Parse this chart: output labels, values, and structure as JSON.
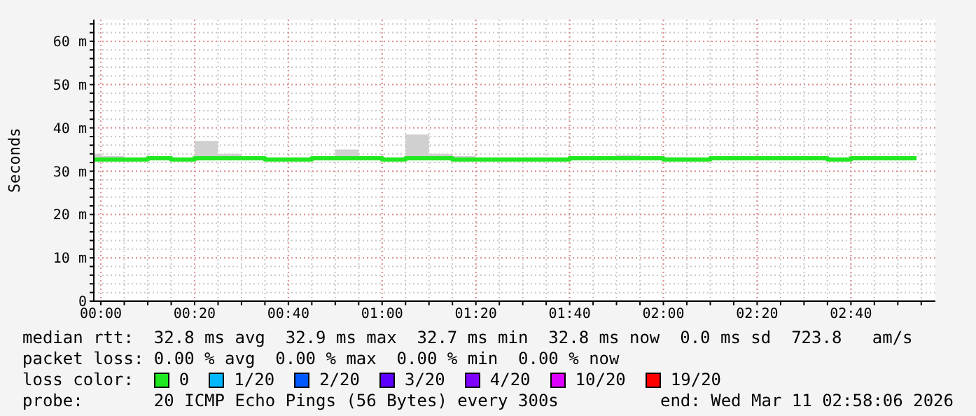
{
  "chart_data": {
    "type": "step",
    "ylabel": "Seconds",
    "legend_title": "loss color:",
    "legend": "bottom",
    "grid": true,
    "x": [
      -0.025,
      0,
      0.0833,
      0.1667,
      0.25,
      0.3333,
      0.4167,
      0.5,
      0.5833,
      0.6667,
      0.75,
      0.8333,
      0.9167,
      1,
      1.0833,
      1.1667,
      1.25,
      1.3333,
      1.4167,
      1.5,
      1.5833,
      1.6667,
      1.75,
      1.8333,
      1.9167,
      2,
      2.0833,
      2.1667,
      2.25,
      2.3333,
      2.4167,
      2.5,
      2.5833,
      2.6667,
      2.75,
      2.8333,
      2.9
    ],
    "xlim": [
      -0.025,
      2.967
    ],
    "xticks": [
      {
        "value": 0,
        "label": "00:00"
      },
      {
        "value": 0.0833,
        "label": null
      },
      {
        "value": 0.1667,
        "label": null
      },
      {
        "value": 0.25,
        "label": null
      },
      {
        "value": 0.3333,
        "label": "00:20"
      },
      {
        "value": 0.4167,
        "label": null
      },
      {
        "value": 0.5,
        "label": null
      },
      {
        "value": 0.5833,
        "label": null
      },
      {
        "value": 0.6667,
        "label": "00:40"
      },
      {
        "value": 0.75,
        "label": null
      },
      {
        "value": 0.8333,
        "label": null
      },
      {
        "value": 0.9167,
        "label": null
      },
      {
        "value": 1,
        "label": "01:00"
      },
      {
        "value": 1.0833,
        "label": null
      },
      {
        "value": 1.1667,
        "label": null
      },
      {
        "value": 1.25,
        "label": null
      },
      {
        "value": 1.3333,
        "label": "01:20"
      },
      {
        "value": 1.4167,
        "label": null
      },
      {
        "value": 1.5,
        "label": null
      },
      {
        "value": 1.5833,
        "label": null
      },
      {
        "value": 1.6667,
        "label": "01:40"
      },
      {
        "value": 1.75,
        "label": null
      },
      {
        "value": 1.8333,
        "label": null
      },
      {
        "value": 1.9167,
        "label": null
      },
      {
        "value": 2,
        "label": "02:00"
      },
      {
        "value": 2.0833,
        "label": null
      },
      {
        "value": 2.1667,
        "label": null
      },
      {
        "value": 2.25,
        "label": null
      },
      {
        "value": 2.3333,
        "label": "02:20"
      },
      {
        "value": 2.4167,
        "label": null
      },
      {
        "value": 2.5,
        "label": null
      },
      {
        "value": 2.5833,
        "label": null
      },
      {
        "value": 2.6667,
        "label": "02:40"
      },
      {
        "value": 2.75,
        "label": null
      },
      {
        "value": 2.8333,
        "label": null
      },
      {
        "value": 2.9167,
        "label": null
      }
    ],
    "ylim": [
      0,
      65
    ],
    "yticks": [
      0,
      {
        "value": 2,
        "label": null
      },
      {
        "value": 4,
        "label": null
      },
      {
        "value": 6,
        "label": null
      },
      {
        "value": 8,
        "label": null
      },
      {
        "value": 10,
        "label": "10 m"
      },
      {
        "value": 12,
        "label": null
      },
      {
        "value": 14,
        "label": null
      },
      {
        "value": 16,
        "label": null
      },
      {
        "value": 18,
        "label": null
      },
      {
        "value": 20,
        "label": "20 m"
      },
      {
        "value": 22,
        "label": null
      },
      {
        "value": 24,
        "label": null
      },
      {
        "value": 26,
        "label": null
      },
      {
        "value": 28,
        "label": null
      },
      {
        "value": 30,
        "label": "30 m"
      },
      {
        "value": 32,
        "label": null
      },
      {
        "value": 34,
        "label": null
      },
      {
        "value": 36,
        "label": null
      },
      {
        "value": 38,
        "label": null
      },
      {
        "value": 40,
        "label": "40 m"
      },
      {
        "value": 42,
        "label": null
      },
      {
        "value": 44,
        "label": null
      },
      {
        "value": 46,
        "label": null
      },
      {
        "value": 48,
        "label": null
      },
      {
        "value": 50,
        "label": "50 m"
      },
      {
        "value": 52,
        "label": null
      },
      {
        "value": 54,
        "label": null
      },
      {
        "value": 56,
        "label": null
      },
      {
        "value": 58,
        "label": null
      },
      {
        "value": 60,
        "label": "60 m"
      },
      {
        "value": 62,
        "label": null
      },
      {
        "value": 64,
        "label": null
      }
    ],
    "series": [
      {
        "name": "0",
        "color": "#20e820",
        "values": [
          32.7,
          32.7,
          32.7,
          33.0,
          32.7,
          33.0,
          33.0,
          33.0,
          32.7,
          32.7,
          33.0,
          33.0,
          33.0,
          32.7,
          33.0,
          33.0,
          32.7,
          32.7,
          32.7,
          32.7,
          32.7,
          33.0,
          33.0,
          33.0,
          33.0,
          32.7,
          32.7,
          33.0,
          33.0,
          33.0,
          33.0,
          33.0,
          32.7,
          33.0,
          33.0,
          33.0,
          33.0
        ],
        "lower": [
          32.5,
          32.5,
          32.5,
          32.5,
          32.5,
          32.5,
          32.5,
          32.5,
          32.5,
          32.5,
          32.5,
          32.5,
          32.5,
          32.5,
          32.5,
          32.5,
          32.5,
          32.5,
          32.5,
          32.5,
          32.5,
          32.5,
          32.5,
          32.5,
          32.5,
          32.5,
          32.5,
          32.5,
          32.5,
          32.5,
          32.5,
          32.5,
          32.5,
          32.5,
          32.5,
          32.5,
          32.5
        ],
        "upper": [
          34.0,
          33.5,
          33.0,
          33.2,
          32.7,
          37.0,
          34.0,
          33.2,
          32.7,
          32.7,
          33.2,
          35.0,
          33.5,
          32.7,
          38.5,
          34.0,
          33.5,
          32.7,
          32.7,
          32.7,
          32.7,
          33.2,
          33.2,
          33.7,
          33.2,
          33.2,
          33.0,
          33.0,
          33.0,
          33.0,
          33.0,
          33.0,
          32.7,
          33.0,
          33.0,
          33.0,
          33.0
        ]
      },
      {
        "name": "1/20",
        "color": "#00b8ff",
        "values": [
          null,
          null,
          null,
          null,
          null,
          null,
          null,
          null,
          null,
          null,
          null,
          null,
          null,
          null,
          null,
          null,
          null,
          null,
          null,
          null,
          null,
          null,
          null,
          null,
          null,
          null,
          null,
          null,
          null,
          null,
          null,
          null,
          null,
          null,
          null,
          null,
          null
        ]
      },
      {
        "name": "2/20",
        "color": "#0059ff",
        "values": [
          null,
          null,
          null,
          null,
          null,
          null,
          null,
          null,
          null,
          null,
          null,
          null,
          null,
          null,
          null,
          null,
          null,
          null,
          null,
          null,
          null,
          null,
          null,
          null,
          null,
          null,
          null,
          null,
          null,
          null,
          null,
          null,
          null,
          null,
          null,
          null,
          null
        ]
      },
      {
        "name": "3/20",
        "color": "#5e00ff",
        "values": [
          null,
          null,
          null,
          null,
          null,
          null,
          null,
          null,
          null,
          null,
          null,
          null,
          null,
          null,
          null,
          null,
          null,
          null,
          null,
          null,
          null,
          null,
          null,
          null,
          null,
          null,
          null,
          null,
          null,
          null,
          null,
          null,
          null,
          null,
          null,
          null,
          null
        ]
      },
      {
        "name": "4/20",
        "color": "#7e00ff",
        "values": [
          null,
          null,
          null,
          null,
          null,
          null,
          null,
          null,
          null,
          null,
          null,
          null,
          null,
          null,
          null,
          null,
          null,
          null,
          null,
          null,
          null,
          null,
          null,
          null,
          null,
          null,
          null,
          null,
          null,
          null,
          null,
          null,
          null,
          null,
          null,
          null,
          null
        ]
      },
      {
        "name": "10/20",
        "color": "#dd00ff",
        "values": [
          null,
          null,
          null,
          null,
          null,
          null,
          null,
          null,
          null,
          null,
          null,
          null,
          null,
          null,
          null,
          null,
          null,
          null,
          null,
          null,
          null,
          null,
          null,
          null,
          null,
          null,
          null,
          null,
          null,
          null,
          null,
          null,
          null,
          null,
          null,
          null,
          null
        ]
      },
      {
        "name": "19/20",
        "color": "#ff0000",
        "values": [
          null,
          null,
          null,
          null,
          null,
          null,
          null,
          null,
          null,
          null,
          null,
          null,
          null,
          null,
          null,
          null,
          null,
          null,
          null,
          null,
          null,
          null,
          null,
          null,
          null,
          null,
          null,
          null,
          null,
          null,
          null,
          null,
          null,
          null,
          null,
          null,
          null
        ]
      }
    ],
    "annotations": [
      "median rtt:  32.8 ms avg  32.9 ms max  32.7 ms min  32.8 ms now  0.0 ms sd  723.8   am/s",
      "packet loss: 0.00 % avg  0.00 % max  0.00 % min  0.00 % now",
      "probe:       20 ICMP Echo Pings (56 Bytes) every 300s",
      "end: Wed Mar 11 02:58:06 2026"
    ]
  }
}
